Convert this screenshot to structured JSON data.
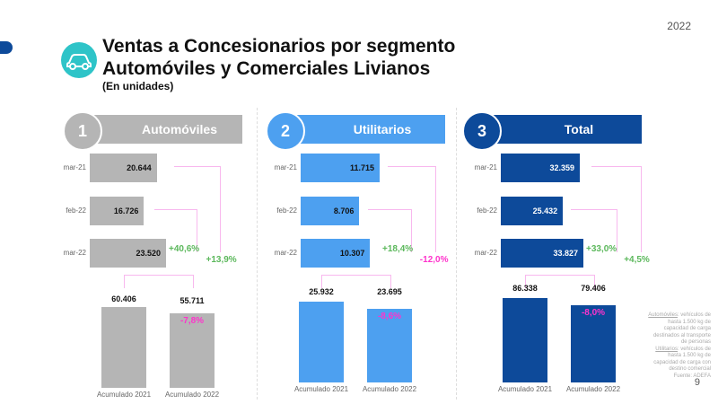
{
  "year": "2022",
  "title_line1": "Ventas a Concesionarios por segmento",
  "title_line2": "Automóviles y Comerciales Livianos",
  "subtitle": "(En unidades)",
  "footnote": {
    "auto_term": "Automóviles",
    "auto_text": ": vehículos de hasta 1.500 kg de capacidad de carga destinados al transporte de personas",
    "util_term": "Utilitarios",
    "util_text": ": vehículos de hasta 1.500 kg de capacidad de carga con destino comercial",
    "source": "Fuente: ADEFA"
  },
  "page_number": "9",
  "colors": {
    "auto": "#b5b5b5",
    "util": "#4da0f0",
    "total": "#0d4a9a",
    "positive": "#5cb85c",
    "negative": "#ff33cc",
    "logo": "#2ec4c8"
  },
  "chart_data": [
    {
      "type": "bar",
      "number": "1",
      "title": "Automóviles",
      "categories": [
        "mar-21",
        "feb-22",
        "mar-22"
      ],
      "values": [
        20644,
        16726,
        23520
      ],
      "value_labels": [
        "20.644",
        "16.726",
        "23.520"
      ],
      "pct_vs_prev_month": "+40,6%",
      "pct_vs_prev_year": "+13,9%",
      "accum_categories": [
        "Acumulado 2021",
        "Acumulado 2022"
      ],
      "accum_values": [
        60406,
        55711
      ],
      "accum_labels": [
        "60.406",
        "55.711"
      ],
      "accum_pct": "-7,8%"
    },
    {
      "type": "bar",
      "number": "2",
      "title": "Utilitarios",
      "categories": [
        "mar-21",
        "feb-22",
        "mar-22"
      ],
      "values": [
        11715,
        8706,
        10307
      ],
      "value_labels": [
        "11.715",
        "8.706",
        "10.307"
      ],
      "pct_vs_prev_month": "+18,4%",
      "pct_vs_prev_year": "-12,0%",
      "accum_categories": [
        "Acumulado 2021",
        "Acumulado 2022"
      ],
      "accum_values": [
        25932,
        23695
      ],
      "accum_labels": [
        "25.932",
        "23.695"
      ],
      "accum_pct": "-8,6%"
    },
    {
      "type": "bar",
      "number": "3",
      "title": "Total",
      "categories": [
        "mar-21",
        "feb-22",
        "mar-22"
      ],
      "values": [
        32359,
        25432,
        33827
      ],
      "value_labels": [
        "32.359",
        "25.432",
        "33.827"
      ],
      "pct_vs_prev_month": "+33,0%",
      "pct_vs_prev_year": "+4,5%",
      "accum_categories": [
        "Acumulado 2021",
        "Acumulado 2022"
      ],
      "accum_values": [
        86338,
        79406
      ],
      "accum_labels": [
        "86.338",
        "79.406"
      ],
      "accum_pct": "-8,0%"
    }
  ]
}
